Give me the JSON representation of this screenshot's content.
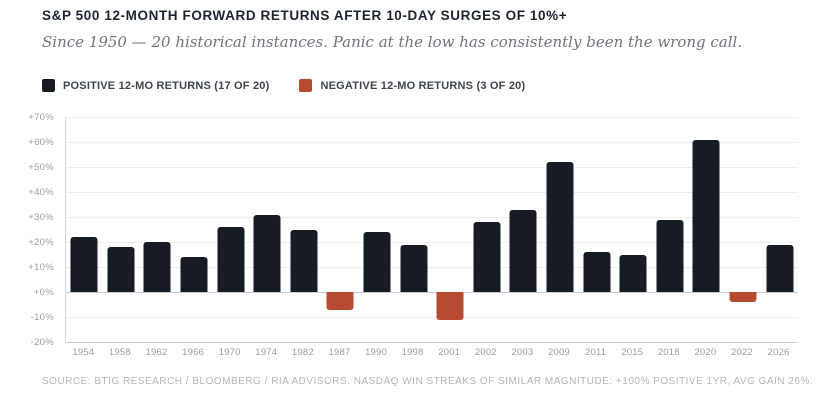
{
  "header": {
    "title": "S&P 500 12-MONTH FORWARD RETURNS AFTER 10-DAY SURGES OF 10%+",
    "subtitle": "Since 1950 — 20 historical instances. Panic at the low has consistently been the wrong call."
  },
  "legend": {
    "items": [
      {
        "label": "POSITIVE 12-MO RETURNS (17 OF 20)",
        "color": "#171b24"
      },
      {
        "label": "NEGATIVE 12-MO RETURNS (3 OF 20)",
        "color": "#b74b32"
      }
    ]
  },
  "footer": {
    "source": "SOURCE: BTIG RESEARCH / BLOOMBERG / RIA ADVISORS. NASDAQ WIN STREAKS OF SIMILAR MAGNITUDE: +100% POSITIVE 1YR, AVG GAIN 26%."
  },
  "chart_data": {
    "type": "bar",
    "title": "S&P 500 12-MONTH FORWARD RETURNS AFTER 10-DAY SURGES OF 10%+",
    "subtitle": "Since 1950 — 20 historical instances. Panic at the low has consistently been the wrong call.",
    "categories": [
      "1954",
      "1958",
      "1962",
      "1966",
      "1970",
      "1974",
      "1982",
      "1987",
      "1990",
      "1998",
      "2001",
      "2002",
      "2003",
      "2009",
      "2011",
      "2015",
      "2018",
      "2020",
      "2022",
      "2026"
    ],
    "values": [
      22,
      18,
      20,
      14,
      26,
      31,
      25,
      -7,
      24,
      19,
      -11,
      28,
      33,
      52,
      16,
      15,
      29,
      61,
      -4,
      19
    ],
    "unit": "%",
    "ylim": [
      -20,
      70
    ],
    "y_ticks": [
      70,
      60,
      50,
      40,
      30,
      20,
      10,
      0,
      -10,
      -20
    ],
    "y_tick_labels": [
      "+70%",
      "+60%",
      "+50%",
      "+40%",
      "+30%",
      "+20%",
      "+10%",
      "+0%",
      "-10%",
      "-20%"
    ],
    "grid": true,
    "legend_position": "top-left",
    "legend_entries": [
      "POSITIVE 12-MO RETURNS (17 OF 20)",
      "NEGATIVE 12-MO RETURNS (3 OF 20)"
    ],
    "colors": {
      "positive": "#171b24",
      "negative": "#b74b32",
      "gridline": "#ecedef",
      "axis_line": "#c9cdd2"
    }
  }
}
